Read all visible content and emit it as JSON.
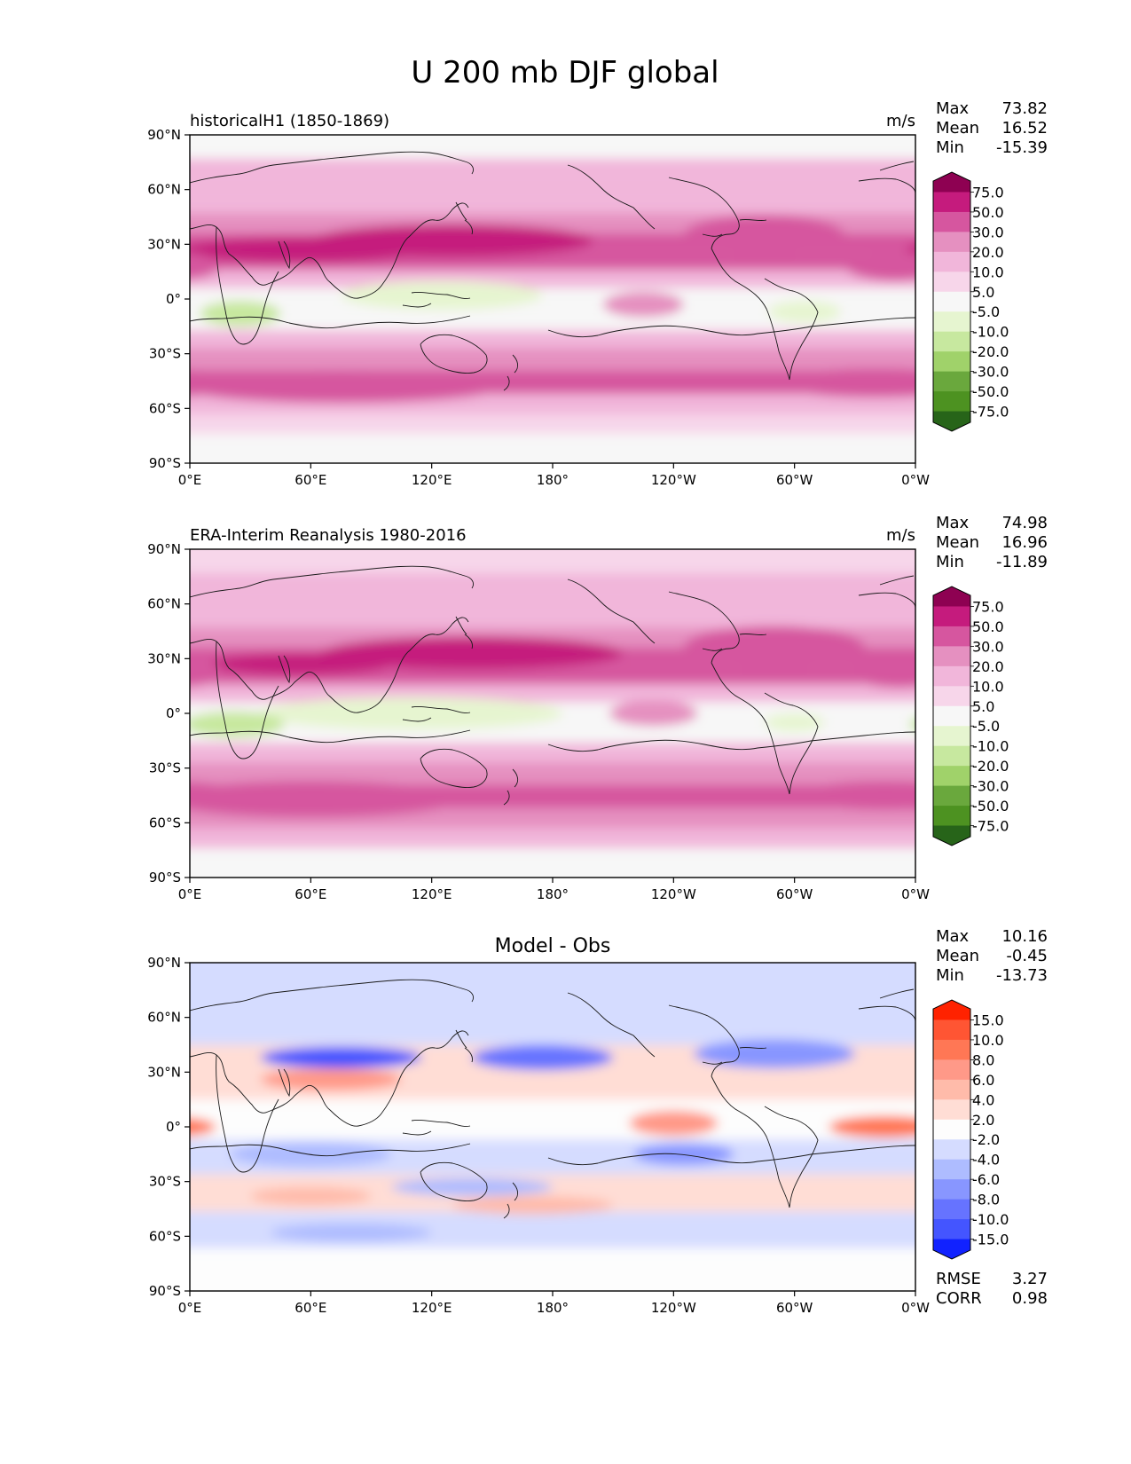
{
  "figure": {
    "title": "U 200 mb DJF global"
  },
  "chart_data": [
    {
      "type": "heatmap",
      "id": "test",
      "title": "historicalH1 (1850-1869)",
      "units": "m/s",
      "stats": {
        "max_label": "Max",
        "max": "73.82",
        "mean_label": "Mean",
        "mean": "16.52",
        "min_label": "Min",
        "min": "-15.39"
      },
      "x_ticks": [
        "0°E",
        "60°E",
        "120°E",
        "180°",
        "120°W",
        "60°W",
        "0°W"
      ],
      "y_ticks": [
        "90°N",
        "60°N",
        "30°N",
        "0°",
        "30°S",
        "60°S",
        "90°S"
      ],
      "xlim": [
        0,
        360
      ],
      "ylim": [
        -90,
        90
      ],
      "colorbar": {
        "levels": [
          "75.0",
          "50.0",
          "30.0",
          "20.0",
          "10.0",
          "5.0",
          "-5.0",
          "-10.0",
          "-20.0",
          "-30.0",
          "-50.0",
          "-75.0"
        ],
        "colors": [
          "#8e0152",
          "#c51b7d",
          "#d6569f",
          "#e590c0",
          "#f1b6da",
          "#f7d6ea",
          "#f7f7f7",
          "#e6f5d0",
          "#c7e89f",
          "#a0d26a",
          "#6aa83d",
          "#4d9221",
          "#276419"
        ]
      },
      "bands": [
        {
          "lat": 84,
          "value": 4
        },
        {
          "lat": 70,
          "value": 12
        },
        {
          "lat": 52,
          "value": 15
        },
        {
          "lat": 42,
          "value": 25
        },
        {
          "lat": 30,
          "value": 48
        },
        {
          "lat": 20,
          "value": 32
        },
        {
          "lat": 12,
          "value": 14
        },
        {
          "lat": 0,
          "value": 0
        },
        {
          "lat": -12,
          "value": 2
        },
        {
          "lat": -22,
          "value": 12
        },
        {
          "lat": -32,
          "value": 22
        },
        {
          "lat": -46,
          "value": 33
        },
        {
          "lat": -58,
          "value": 18
        },
        {
          "lat": -68,
          "value": 8
        },
        {
          "lat": -80,
          "value": 0
        }
      ],
      "anomalies": [
        {
          "lon": 130,
          "lat": 32,
          "w": 70,
          "h": 9,
          "value": 70
        },
        {
          "lon": 55,
          "lat": 27,
          "w": 60,
          "h": 7,
          "value": 55
        },
        {
          "lon": 285,
          "lat": 35,
          "w": 40,
          "h": 11,
          "value": 42
        },
        {
          "lon": 350,
          "lat": 18,
          "w": 25,
          "h": 8,
          "value": 40
        },
        {
          "lon": 125,
          "lat": 2,
          "w": 50,
          "h": 8,
          "value": -9
        },
        {
          "lon": 25,
          "lat": -8,
          "w": 20,
          "h": 7,
          "value": -14
        },
        {
          "lon": 305,
          "lat": -7,
          "w": 18,
          "h": 6,
          "value": -9
        },
        {
          "lon": 225,
          "lat": -3,
          "w": 20,
          "h": 7,
          "value": 22
        },
        {
          "lon": 75,
          "lat": -48,
          "w": 80,
          "h": 9,
          "value": 38
        },
        {
          "lon": 340,
          "lat": -46,
          "w": 50,
          "h": 8,
          "value": 38
        }
      ]
    },
    {
      "type": "heatmap",
      "id": "reference",
      "title": "ERA-Interim Reanalysis 1980-2016",
      "units": "m/s",
      "stats": {
        "max_label": "Max",
        "max": "74.98",
        "mean_label": "Mean",
        "mean": "16.96",
        "min_label": "Min",
        "min": "-11.89"
      },
      "x_ticks": [
        "0°E",
        "60°E",
        "120°E",
        "180°",
        "120°W",
        "60°W",
        "0°W"
      ],
      "y_ticks": [
        "90°N",
        "60°N",
        "30°N",
        "0°",
        "30°S",
        "60°S",
        "90°S"
      ],
      "xlim": [
        0,
        360
      ],
      "ylim": [
        -90,
        90
      ],
      "colorbar": {
        "levels": [
          "75.0",
          "50.0",
          "30.0",
          "20.0",
          "10.0",
          "5.0",
          "-5.0",
          "-10.0",
          "-20.0",
          "-30.0",
          "-50.0",
          "-75.0"
        ],
        "colors": [
          "#8e0152",
          "#c51b7d",
          "#d6569f",
          "#e590c0",
          "#f1b6da",
          "#f7d6ea",
          "#f7f7f7",
          "#e6f5d0",
          "#c7e89f",
          "#a0d26a",
          "#6aa83d",
          "#4d9221",
          "#276419"
        ]
      },
      "bands": [
        {
          "lat": 84,
          "value": 6
        },
        {
          "lat": 70,
          "value": 14
        },
        {
          "lat": 52,
          "value": 18
        },
        {
          "lat": 42,
          "value": 28
        },
        {
          "lat": 30,
          "value": 46
        },
        {
          "lat": 20,
          "value": 30
        },
        {
          "lat": 12,
          "value": 12
        },
        {
          "lat": 0,
          "value": 0
        },
        {
          "lat": -10,
          "value": 1
        },
        {
          "lat": -22,
          "value": 14
        },
        {
          "lat": -32,
          "value": 22
        },
        {
          "lat": -46,
          "value": 32
        },
        {
          "lat": -58,
          "value": 22
        },
        {
          "lat": -68,
          "value": 12
        },
        {
          "lat": -80,
          "value": 0
        }
      ],
      "anomalies": [
        {
          "lon": 140,
          "lat": 33,
          "w": 75,
          "h": 9,
          "value": 72
        },
        {
          "lon": 55,
          "lat": 27,
          "w": 45,
          "h": 6,
          "value": 52
        },
        {
          "lon": 290,
          "lat": 36,
          "w": 45,
          "h": 12,
          "value": 42
        },
        {
          "lon": 352,
          "lat": 22,
          "w": 25,
          "h": 8,
          "value": 42
        },
        {
          "lon": 110,
          "lat": 0,
          "w": 75,
          "h": 9,
          "value": -9
        },
        {
          "lon": 22,
          "lat": -6,
          "w": 25,
          "h": 7,
          "value": -13
        },
        {
          "lon": 300,
          "lat": -5,
          "w": 15,
          "h": 5,
          "value": -7
        },
        {
          "lon": 230,
          "lat": 0,
          "w": 22,
          "h": 7,
          "value": 22
        },
        {
          "lon": 60,
          "lat": -47,
          "w": 75,
          "h": 10,
          "value": 38
        },
        {
          "lon": 345,
          "lat": -45,
          "w": 45,
          "h": 8,
          "value": 40
        }
      ]
    },
    {
      "type": "heatmap",
      "id": "diff",
      "title": "Model - Obs",
      "units": "",
      "stats": {
        "max_label": "Max",
        "max": "10.16",
        "mean_label": "Mean",
        "mean": "-0.45",
        "min_label": "Min",
        "min": "-13.73"
      },
      "metrics": {
        "rmse_label": "RMSE",
        "rmse": "3.27",
        "corr_label": "CORR",
        "corr": "0.98"
      },
      "x_ticks": [
        "0°E",
        "60°E",
        "120°E",
        "180°",
        "120°W",
        "60°W",
        "0°W"
      ],
      "y_ticks": [
        "90°N",
        "60°N",
        "30°N",
        "0°",
        "30°S",
        "60°S",
        "90°S"
      ],
      "xlim": [
        0,
        360
      ],
      "ylim": [
        -90,
        90
      ],
      "colorbar": {
        "levels": [
          "15.0",
          "10.0",
          "8.0",
          "6.0",
          "4.0",
          "2.0",
          "-2.0",
          "-4.0",
          "-6.0",
          "-8.0",
          "-10.0",
          "-15.0"
        ],
        "colors": [
          "#ff2200",
          "#ff5533",
          "#ff7755",
          "#ff9988",
          "#ffbbaa",
          "#ffddd5",
          "#fdfdfd",
          "#d5dcff",
          "#aebcff",
          "#8896ff",
          "#6673ff",
          "#4455ff",
          "#1122ff"
        ]
      },
      "bands": [
        {
          "lat": 60,
          "value": -3
        },
        {
          "lat": 30,
          "value": 2
        },
        {
          "lat": 0,
          "value": 0
        },
        {
          "lat": -14,
          "value": -3
        },
        {
          "lat": -38,
          "value": 2.5
        },
        {
          "lat": -55,
          "value": -3
        },
        {
          "lat": -78,
          "value": 0
        }
      ],
      "anomalies": [
        {
          "lon": 75,
          "lat": 38,
          "w": 40,
          "h": 6,
          "value": -14
        },
        {
          "lon": 175,
          "lat": 38,
          "w": 35,
          "h": 7,
          "value": -9
        },
        {
          "lon": 290,
          "lat": 40,
          "w": 40,
          "h": 8,
          "value": -8
        },
        {
          "lon": 30,
          "lat": 62,
          "w": 35,
          "h": 8,
          "value": -4
        },
        {
          "lon": 70,
          "lat": 26,
          "w": 35,
          "h": 6,
          "value": 7
        },
        {
          "lon": 180,
          "lat": 25,
          "w": 28,
          "h": 4,
          "value": 3
        },
        {
          "lon": 240,
          "lat": 2,
          "w": 22,
          "h": 7,
          "value": 6
        },
        {
          "lon": 345,
          "lat": 0,
          "w": 28,
          "h": 6,
          "value": 8
        },
        {
          "lon": 60,
          "lat": -15,
          "w": 40,
          "h": 7,
          "value": -5
        },
        {
          "lon": 245,
          "lat": -15,
          "w": 25,
          "h": 6,
          "value": -8
        },
        {
          "lon": 140,
          "lat": -33,
          "w": 40,
          "h": 5,
          "value": -6
        },
        {
          "lon": 60,
          "lat": -38,
          "w": 30,
          "h": 5,
          "value": 5
        },
        {
          "lon": 170,
          "lat": -43,
          "w": 40,
          "h": 5,
          "value": 5
        },
        {
          "lon": 80,
          "lat": -58,
          "w": 40,
          "h": 5,
          "value": -5
        }
      ]
    }
  ]
}
